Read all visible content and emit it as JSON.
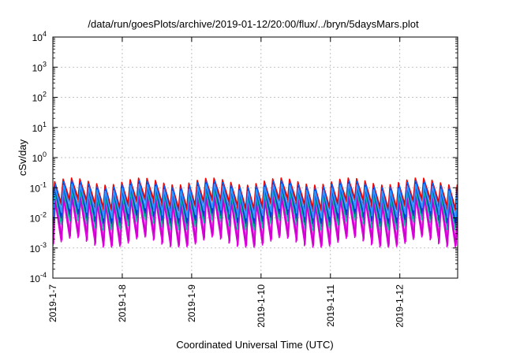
{
  "chart_data": {
    "type": "line",
    "title": "/data/run/goesPlots/archive/2019-01-12/20:00/flux/../bryn/5daysMars.plot",
    "xlabel": "Coordinated Universal Time (UTC)",
    "ylabel": "cSv/day",
    "y_scale": "log",
    "ylim": [
      0.0001,
      10000
    ],
    "y_ticks": [
      {
        "base": "10",
        "exp": "-4"
      },
      {
        "base": "10",
        "exp": "-3"
      },
      {
        "base": "10",
        "exp": "-2"
      },
      {
        "base": "10",
        "exp": "-1"
      },
      {
        "base": "10",
        "exp": "0"
      },
      {
        "base": "10",
        "exp": "1"
      },
      {
        "base": "10",
        "exp": "2"
      },
      {
        "base": "10",
        "exp": "3"
      },
      {
        "base": "10",
        "exp": "4"
      }
    ],
    "xlim": [
      "2019-01-07T00:00",
      "2019-01-12T20:00"
    ],
    "x_ticks": [
      "2019-1-7",
      "2019-1-8",
      "2019-1-9",
      "2019-1-10",
      "2019-1-11",
      "2019-1-12"
    ],
    "grid": true,
    "legend": "none",
    "waveform": {
      "period_hours": 2.9,
      "peak_day_peaks": 0.12,
      "peak_day_troughs": 0.03,
      "low_day_peaks": 0.08,
      "low_day_troughs": 0.02
    },
    "series": [
      {
        "color": "#ff0000",
        "peak": 0.16,
        "trough": 0.03
      },
      {
        "color": "#e60000",
        "peak": 0.14,
        "trough": 0.025
      },
      {
        "color": "#ff00ff",
        "peak": 0.05,
        "trough": 0.0018
      },
      {
        "color": "#e000e0",
        "peak": 0.045,
        "trough": 0.0016
      },
      {
        "color": "#ff33ff",
        "peak": 0.06,
        "trough": 0.0025
      },
      {
        "color": "#cc00cc",
        "peak": 0.04,
        "trough": 0.002
      },
      {
        "color": "#00cc99",
        "peak": 0.07,
        "trough": 0.006
      },
      {
        "color": "#009999",
        "peak": 0.08,
        "trough": 0.008
      },
      {
        "color": "#0066ff",
        "peak": 0.13,
        "trough": 0.012
      },
      {
        "color": "#0033cc",
        "peak": 0.11,
        "trough": 0.01
      },
      {
        "color": "#3399ff",
        "peak": 0.1,
        "trough": 0.015
      }
    ]
  }
}
